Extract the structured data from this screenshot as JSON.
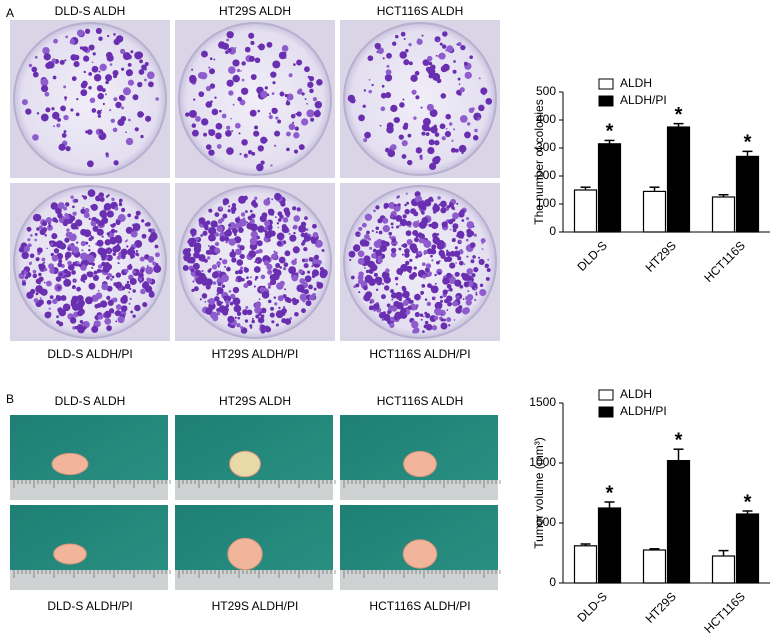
{
  "panel_labels": [
    "A",
    "B"
  ],
  "photos": {
    "a_top": [
      "DLD-S ALDH",
      "HT29S ALDH",
      "HCT116S ALDH"
    ],
    "a_bottom": [
      "DLD-S ALDH/PI",
      "HT29S ALDH/PI",
      "HCT116S ALDH/PI"
    ],
    "b_top": [
      "DLD-S ALDH",
      "HT29S ALDH",
      "HCT116S ALDH"
    ],
    "b_bottom": [
      "DLD-S ALDH/PI",
      "HT29S ALDH/PI",
      "HCT116S ALDH/PI"
    ]
  },
  "chart_data": [
    {
      "type": "bar",
      "ylabel": "The number of colonies",
      "categories": [
        "DLD-S",
        "HT29S",
        "HCT116S"
      ],
      "series": [
        {
          "name": "ALDH",
          "color": "#ffffff",
          "values": [
            150,
            145,
            125
          ],
          "errors": [
            10,
            15,
            8
          ]
        },
        {
          "name": "ALDH/PI",
          "color": "#000000",
          "values": [
            315,
            375,
            270
          ],
          "errors": [
            12,
            12,
            18
          ],
          "significance": [
            "*",
            "*",
            "*"
          ]
        }
      ],
      "ylim": [
        0,
        500
      ],
      "yticks": [
        0,
        100,
        200,
        300,
        400,
        500
      ],
      "legend": "upper-left"
    },
    {
      "type": "bar",
      "ylabel": "Tumor volume (mm³)",
      "categories": [
        "DLD-S",
        "HT29S",
        "HCT116S"
      ],
      "series": [
        {
          "name": "ALDH",
          "color": "#ffffff",
          "values": [
            310,
            275,
            225
          ],
          "errors": [
            15,
            10,
            45
          ]
        },
        {
          "name": "ALDH/PI",
          "color": "#000000",
          "values": [
            625,
            1020,
            575
          ],
          "errors": [
            50,
            95,
            25
          ],
          "significance": [
            "*",
            "*",
            "*"
          ]
        }
      ],
      "ylim": [
        0,
        1500
      ],
      "yticks": [
        0,
        500,
        1000,
        1500
      ],
      "legend": "upper-left"
    }
  ]
}
